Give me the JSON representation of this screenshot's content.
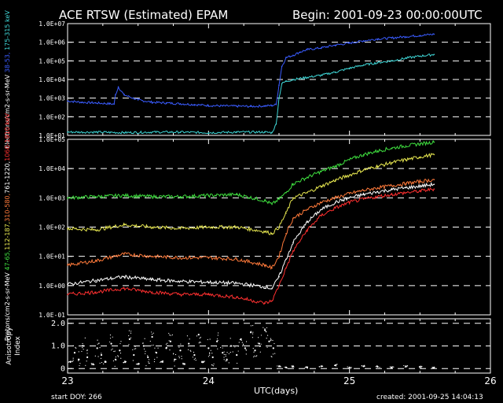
{
  "header": {
    "title": "ACE RTSW (Estimated) EPAM",
    "begin": "Begin: 2001-09-23 00:00:00UTC"
  },
  "footer": {
    "start_doy": "start DOY:  266",
    "created": "created:   2001-09-25 14:04:13"
  },
  "chart_data": [
    {
      "type": "line",
      "panel": "electrons",
      "ylabel_parts": [
        {
          "text": "Electrons/cm2-s-sr-MeV",
          "color": "#ffffff"
        },
        {
          "text": " 38-53, ",
          "color": "#3a5cff"
        },
        {
          "text": "175-315 keV",
          "color": "#3fd7d7"
        }
      ],
      "ylog": true,
      "ylim": [
        10,
        10000000
      ],
      "yticks": [
        "1.0E+01",
        "1.0E+02",
        "1.0E+03",
        "1.0E+04",
        "1.0E+05",
        "1.0E+06",
        "1.0E+07"
      ],
      "ytick_values": [
        10,
        100,
        1000,
        10000,
        100000,
        1000000,
        10000000
      ],
      "grid": "dashed at each decade",
      "series": [
        {
          "color": "#3a5cff",
          "x": [
            23.0,
            23.1,
            23.2,
            23.3,
            23.33,
            23.34,
            23.36,
            23.4,
            23.5,
            23.6,
            23.7,
            23.8,
            23.9,
            24.0,
            24.1,
            24.2,
            24.3,
            24.4,
            24.45,
            24.48,
            24.5,
            24.52,
            24.55,
            24.6,
            24.65,
            24.7,
            24.8,
            24.9,
            25.0,
            25.1,
            25.2,
            25.3,
            25.4,
            25.5,
            25.6
          ],
          "y": [
            700,
            600,
            550,
            500,
            480,
            1500,
            4000,
            1500,
            800,
            600,
            550,
            500,
            450,
            400,
            380,
            370,
            360,
            380,
            400,
            450,
            5000,
            50000,
            150000,
            200000,
            300000,
            400000,
            500000,
            700000,
            900000,
            1200000,
            1500000,
            1700000,
            2000000,
            2300000,
            2700000
          ]
        },
        {
          "color": "#3fd7d7",
          "x": [
            23.0,
            23.2,
            23.4,
            23.6,
            23.8,
            24.0,
            24.2,
            24.4,
            24.45,
            24.48,
            24.5,
            24.52,
            24.55,
            24.6,
            24.7,
            24.8,
            24.9,
            25.0,
            25.1,
            25.2,
            25.3,
            25.4,
            25.5,
            25.6
          ],
          "y": [
            15,
            15,
            14,
            15,
            15,
            14,
            15,
            15,
            14,
            40,
            1000,
            6000,
            8000,
            10000,
            13000,
            17000,
            25000,
            40000,
            60000,
            80000,
            100000,
            140000,
            180000,
            220000
          ]
        }
      ]
    },
    {
      "type": "line",
      "panel": "protons",
      "ylabel_parts": [
        {
          "text": "Protons/cm2-s-sr-MeV",
          "color": "#ffffff"
        },
        {
          "text": " 47-65,",
          "color": "#3fe03f"
        },
        {
          "text": "112-187,",
          "color": "#e8e850"
        },
        {
          "text": "310-580,",
          "color": "#ff7a3a"
        },
        {
          "text": "761-1220,",
          "color": "#ffffff"
        },
        {
          "text": "1060-1910 keV",
          "color": "#ff3030"
        }
      ],
      "ylog": true,
      "ylim": [
        0.1,
        100000
      ],
      "yticks": [
        "1.0E-01",
        "1.0E+00",
        "1.0E+01",
        "1.0E+02",
        "1.0E+03",
        "1.0E+04",
        "1.0E+05"
      ],
      "ytick_values": [
        0.1,
        1,
        10,
        100,
        1000,
        10000,
        100000
      ],
      "grid": "dashed at each decade",
      "series": [
        {
          "color": "#3fe03f",
          "x": [
            23.0,
            23.2,
            23.4,
            23.6,
            23.8,
            24.0,
            24.2,
            24.4,
            24.45,
            24.5,
            24.55,
            24.6,
            24.7,
            24.8,
            24.9,
            25.0,
            25.1,
            25.2,
            25.3,
            25.4,
            25.5,
            25.6
          ],
          "y": [
            1000,
            1100,
            1200,
            1100,
            1100,
            1200,
            1300,
            800,
            600,
            900,
            1500,
            3000,
            5000,
            8000,
            12000,
            20000,
            30000,
            40000,
            50000,
            60000,
            70000,
            80000
          ]
        },
        {
          "color": "#e8e850",
          "x": [
            23.0,
            23.2,
            23.4,
            23.6,
            23.8,
            24.0,
            24.2,
            24.4,
            24.45,
            24.5,
            24.55,
            24.6,
            24.7,
            24.8,
            24.9,
            25.0,
            25.1,
            25.2,
            25.3,
            25.4,
            25.5,
            25.6
          ],
          "y": [
            90,
            80,
            120,
            100,
            90,
            100,
            100,
            70,
            60,
            100,
            300,
            1000,
            1500,
            2500,
            4000,
            6000,
            9000,
            12000,
            16000,
            20000,
            25000,
            30000
          ]
        },
        {
          "color": "#ff7a3a",
          "x": [
            23.0,
            23.2,
            23.4,
            23.6,
            23.8,
            24.0,
            24.2,
            24.4,
            24.45,
            24.5,
            24.55,
            24.6,
            24.7,
            24.8,
            24.9,
            25.0,
            25.1,
            25.2,
            25.3,
            25.4,
            25.5,
            25.6
          ],
          "y": [
            5,
            7,
            12,
            10,
            9,
            9,
            8,
            5,
            4,
            10,
            60,
            200,
            400,
            700,
            1000,
            1400,
            1800,
            2200,
            2600,
            3100,
            3600,
            4200
          ]
        },
        {
          "color": "#ffffff",
          "x": [
            23.0,
            23.2,
            23.4,
            23.6,
            23.8,
            24.0,
            24.2,
            24.4,
            24.45,
            24.5,
            24.55,
            24.6,
            24.7,
            24.8,
            24.9,
            25.0,
            25.1,
            25.2,
            25.3,
            25.4,
            25.5,
            25.6
          ],
          "y": [
            1.1,
            1.5,
            2.0,
            1.6,
            1.4,
            1.3,
            1.2,
            0.9,
            0.8,
            2.0,
            8,
            30,
            150,
            400,
            700,
            1000,
            1300,
            1600,
            1900,
            2200,
            2500,
            2900
          ]
        },
        {
          "color": "#ff3030",
          "x": [
            23.0,
            23.2,
            23.4,
            23.6,
            23.8,
            24.0,
            24.2,
            24.4,
            24.45,
            24.5,
            24.55,
            24.6,
            24.7,
            24.8,
            24.9,
            25.0,
            25.1,
            25.2,
            25.3,
            25.4,
            25.5,
            25.6
          ],
          "y": [
            0.5,
            0.6,
            0.8,
            0.6,
            0.5,
            0.5,
            0.4,
            0.25,
            0.3,
            1.0,
            4,
            15,
            80,
            250,
            450,
            700,
            900,
            1100,
            1300,
            1500,
            1700,
            2000
          ]
        }
      ]
    },
    {
      "type": "scatter",
      "panel": "anisotropy",
      "ylabel_lines": [
        "Anisotropy",
        "Index"
      ],
      "ylog": false,
      "ylim": [
        -0.2,
        2.2
      ],
      "yticks": [
        "0",
        "1.0",
        "2.0"
      ],
      "ytick_values": [
        0,
        1,
        2
      ],
      "grid": "dashed at 0, 1.0, 2.0",
      "series": [
        {
          "color": "#ffffff",
          "x": [
            23.02,
            23.05,
            23.08,
            23.11,
            23.14,
            23.18,
            23.21,
            23.24,
            23.27,
            23.31,
            23.34,
            23.37,
            23.41,
            23.44,
            23.47,
            23.5,
            23.54,
            23.57,
            23.6,
            23.63,
            23.67,
            23.7,
            23.73,
            23.76,
            23.8,
            23.83,
            23.86,
            23.9,
            23.93,
            23.96,
            24.0,
            24.03,
            24.06,
            24.1,
            24.13,
            24.16,
            24.2,
            24.23,
            24.26,
            24.3,
            24.33,
            24.36,
            24.4,
            24.43,
            24.46,
            24.5,
            24.55,
            24.6,
            24.7,
            24.8,
            24.9,
            25.0,
            25.1,
            25.2,
            25.3,
            25.4,
            25.5,
            25.6
          ],
          "y": [
            0.3,
            0.7,
            0.4,
            1.0,
            0.5,
            0.2,
            0.9,
            0.6,
            0.3,
            1.1,
            0.4,
            0.8,
            0.3,
            1.3,
            0.6,
            0.2,
            1.0,
            0.5,
            1.4,
            0.7,
            0.3,
            0.9,
            1.2,
            0.4,
            0.8,
            0.2,
            1.1,
            0.6,
            1.5,
            0.3,
            0.9,
            0.5,
            1.2,
            0.7,
            0.4,
            1.0,
            0.6,
            1.3,
            0.9,
            1.6,
            0.8,
            1.1,
            1.7,
            1.2,
            0.9,
            0.1,
            0.05,
            0.1,
            0.05,
            0.1,
            0.15,
            0.05,
            0.1,
            0.08,
            0.05,
            0.1,
            0.07,
            0.05
          ]
        }
      ]
    }
  ],
  "x_axis": {
    "label": "UTC(days)",
    "ticks": [
      "23",
      "24",
      "25",
      "26"
    ],
    "tick_values": [
      23,
      24,
      25,
      26
    ],
    "xlim": [
      23,
      26
    ]
  }
}
